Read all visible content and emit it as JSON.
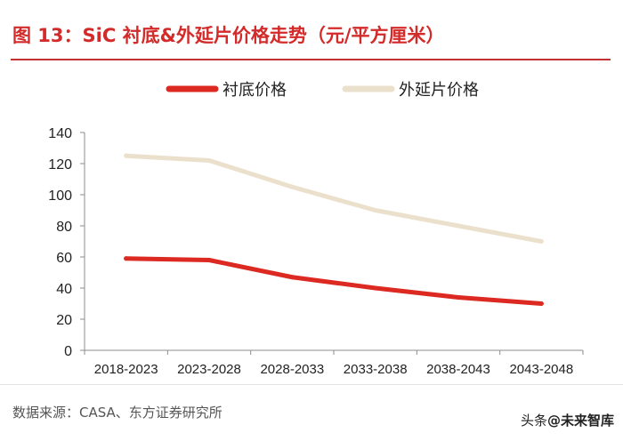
{
  "header": {
    "title": "图 13：SiC 衬底&外延片价格走势（元/平方厘米）"
  },
  "chart_data": {
    "type": "line",
    "title": "SiC 衬底&外延片价格走势（元/平方厘米）",
    "xlabel": "",
    "ylabel": "",
    "categories": [
      "2018-2023",
      "2023-2028",
      "2028-2033",
      "2033-2038",
      "2038-2043",
      "2043-2048"
    ],
    "ylim": [
      0,
      140
    ],
    "yticks": [
      0,
      20,
      40,
      60,
      80,
      100,
      120,
      140
    ],
    "legend_position": "top",
    "grid": false,
    "series": [
      {
        "name": "衬底价格",
        "color": "#dc2a22",
        "values": [
          59,
          58,
          47,
          40,
          34,
          30
        ]
      },
      {
        "name": "外延片价格",
        "color": "#ebe0cc",
        "values": [
          125,
          122,
          105,
          90,
          80,
          70
        ]
      }
    ]
  },
  "footer": {
    "source": "数据来源：CASA、东方证券研究所",
    "watermark_prefix": "头条",
    "watermark_handle": "@未来智库"
  }
}
